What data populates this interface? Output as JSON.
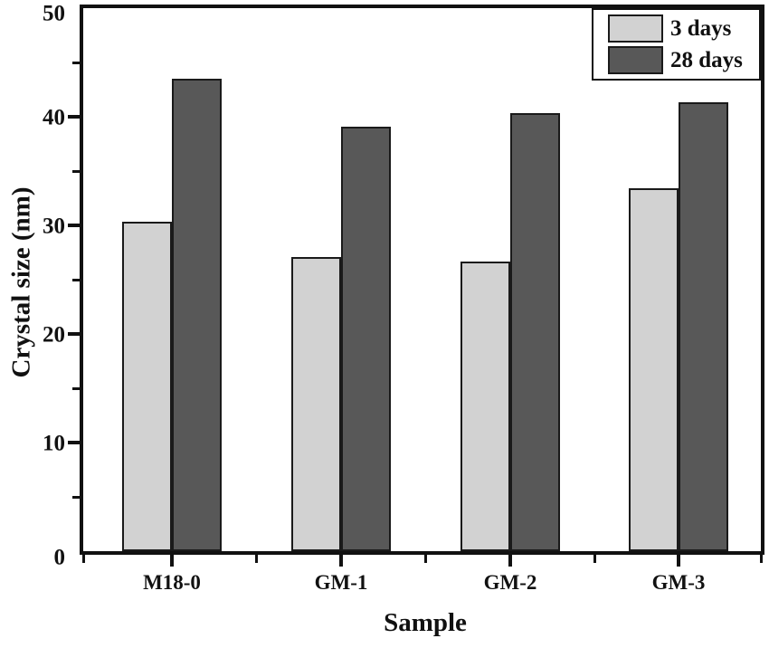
{
  "chart_data": {
    "type": "bar",
    "xlabel": "Sample",
    "ylabel": "Crystal size (nm)",
    "categories": [
      "M18-0",
      "GM-1",
      "GM-2",
      "GM-3"
    ],
    "series": [
      {
        "name": "3 days",
        "color": "#d2d2d2",
        "values": [
          30.3,
          27.1,
          26.7,
          33.4
        ]
      },
      {
        "name": "28 days",
        "color": "#585858",
        "values": [
          43.5,
          39.1,
          40.3,
          41.3
        ]
      }
    ],
    "ylim": [
      0,
      50
    ],
    "yticks": [
      0,
      10,
      20,
      30,
      40,
      50
    ],
    "yticks_minor": [
      5,
      15,
      25,
      35,
      45
    ],
    "legend_position": "top-right-inside",
    "grid": false
  },
  "colors": {
    "frame": "#111111",
    "text": "#111111",
    "background": "#ffffff",
    "bar_light": "#d2d2d2",
    "bar_dark": "#585858"
  }
}
